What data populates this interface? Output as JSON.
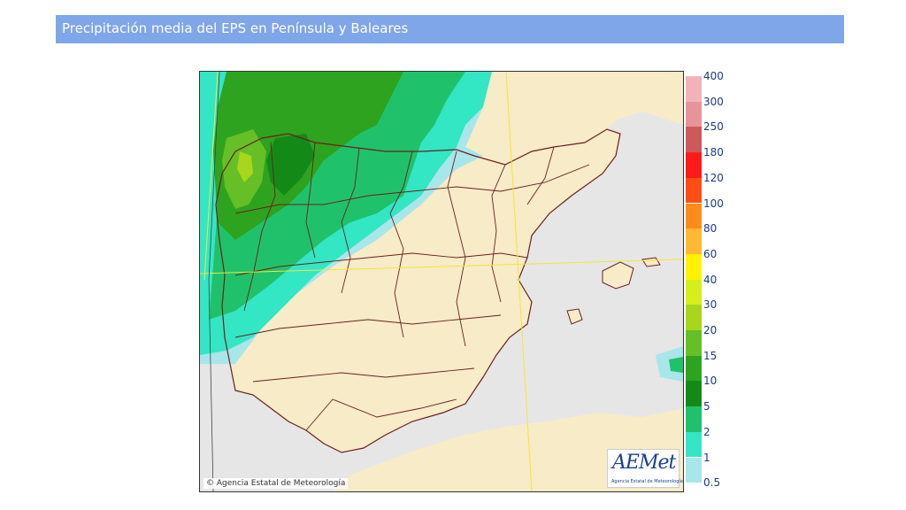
{
  "header": {
    "title": "Precipitación media del EPS en Península y Baleares"
  },
  "map": {
    "copyright": "© Agencia Estatal de Meteorología",
    "logo_text": "AEMet",
    "logo_subtext": "Agencia Estatal de Meteorología",
    "colors": {
      "land": "#f7ebc8",
      "sea": "#e6e6e6",
      "borders": "#6b1f1f",
      "grid": "#f2e63a"
    }
  },
  "legend": {
    "labels": [
      "400",
      "300",
      "250",
      "180",
      "120",
      "100",
      "80",
      "60",
      "40",
      "30",
      "20",
      "15",
      "10",
      "5",
      "2",
      "1",
      "0.5"
    ],
    "colors": [
      "#f2b3b8",
      "#e69499",
      "#cc5a5a",
      "#ff1a1a",
      "#ff4d14",
      "#ff8c1a",
      "#ffb833",
      "#fff200",
      "#d4ef1a",
      "#a8d61a",
      "#66bf26",
      "#2ea31f",
      "#138a18",
      "#1fc26b",
      "#33e6c4",
      "#a8e6ea"
    ]
  }
}
